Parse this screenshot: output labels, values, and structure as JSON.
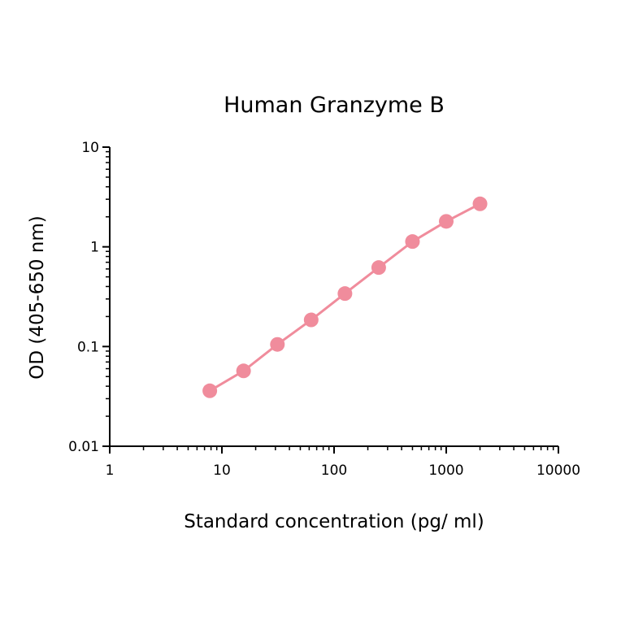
{
  "chart_data": {
    "type": "line",
    "title": "Human Granzyme B",
    "xlabel": "Standard concentration (pg/ ml)",
    "ylabel": "OD (405-650 nm)",
    "x_scale": "log",
    "y_scale": "log",
    "xlim": [
      1,
      10000
    ],
    "ylim": [
      0.01,
      10
    ],
    "x_ticks": [
      "1",
      "10",
      "100",
      "1000",
      "10000"
    ],
    "y_ticks": [
      "0.01",
      "0.1",
      "1",
      "10"
    ],
    "grid": false,
    "series": [
      {
        "color": "#f08c9c",
        "x": [
          7.8,
          15.6,
          31.25,
          62.5,
          125,
          250,
          500,
          1000,
          2000
        ],
        "y": [
          0.036,
          0.057,
          0.105,
          0.185,
          0.34,
          0.62,
          1.13,
          1.8,
          2.7
        ]
      }
    ]
  }
}
